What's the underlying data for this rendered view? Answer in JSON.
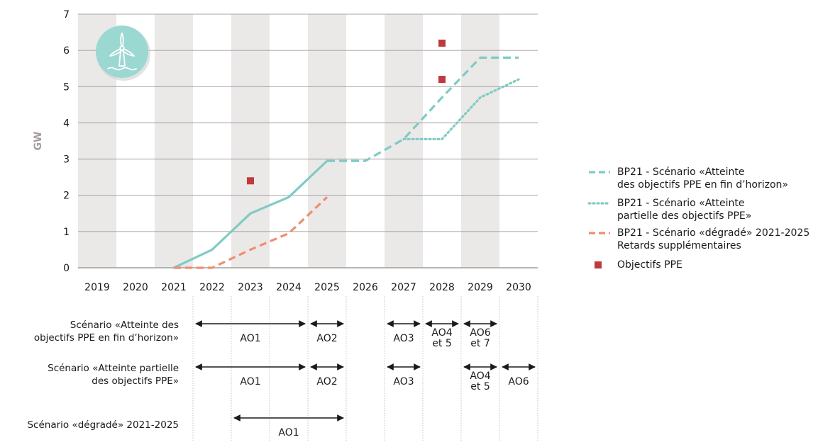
{
  "chart_data": {
    "type": "line",
    "ylabel": "GW",
    "ylim": [
      0,
      7
    ],
    "y_ticks": [
      "0",
      "1",
      "2",
      "3",
      "4",
      "5",
      "6",
      "7"
    ],
    "categories": [
      "2019",
      "2020",
      "2021",
      "2022",
      "2023",
      "2024",
      "2025",
      "2026",
      "2027",
      "2028",
      "2029",
      "2030"
    ],
    "grid": "horizontal",
    "alternating_column_shading": true,
    "legend_position": "right",
    "icon": "wind-turbine-icon",
    "series": [
      {
        "name": "BP21 - Scénario «Atteinte des objectifs PPE en fin d’horizon»",
        "legend_lines": [
          "BP21 - Scénario «Atteinte",
          "des objectifs PPE en fin d’horizon»"
        ],
        "style": "dashed",
        "color": "#7fcbc4",
        "points": [
          [
            2021,
            0
          ],
          [
            2022,
            0.5
          ],
          [
            2023,
            1.5
          ],
          [
            2024,
            1.95
          ],
          [
            2025,
            2.95
          ],
          [
            2026,
            2.95
          ],
          [
            2027,
            3.55
          ],
          [
            2028,
            4.7
          ],
          [
            2029,
            5.8
          ],
          [
            2030,
            5.8
          ]
        ]
      },
      {
        "name": "BP21 - Scénario «Atteinte partielle des objectifs PPE»",
        "legend_lines": [
          "BP21 - Scénario «Atteinte",
          "partielle des objectifs PPE»"
        ],
        "style": "dotted",
        "color": "#7fcbc4",
        "points": [
          [
            2027,
            3.55
          ],
          [
            2028,
            3.55
          ],
          [
            2029,
            4.7
          ],
          [
            2030,
            5.2
          ]
        ]
      },
      {
        "name": "BP21 - Scénario «dégradé» 2021-2025 Retards supplémentaires",
        "legend_lines": [
          "BP21 - Scénario «dégradé» 2021-2025",
          "Retards supplémentaires"
        ],
        "style": "dashed",
        "color": "#f08d70",
        "points": [
          [
            2021,
            0
          ],
          [
            2022,
            0
          ],
          [
            2023,
            0.5
          ],
          [
            2024,
            0.95
          ],
          [
            2025,
            1.95
          ]
        ]
      },
      {
        "name": "Objectifs PPE",
        "legend_lines": [
          "Objectifs PPE"
        ],
        "style": "markers",
        "color": "#c0393b",
        "points": [
          [
            2023,
            2.4
          ],
          [
            2028,
            5.2
          ],
          [
            2028,
            6.2
          ]
        ]
      }
    ],
    "series_shared_solid_segment": "2021–2025 common trajectory drawn as solid line",
    "timeline": {
      "rows": [
        {
          "label_lines": [
            "Scénario «Atteinte des",
            "objectifs PPE en fin d’horizon»"
          ],
          "arrows": [
            {
              "from": 2022,
              "to": 2024,
              "label_lines": [
                "AO1"
              ]
            },
            {
              "from": 2025,
              "to": 2025,
              "label_lines": [
                "AO2"
              ]
            },
            {
              "from": 2027,
              "to": 2027,
              "label_lines": [
                "AO3"
              ]
            },
            {
              "from": 2028,
              "to": 2028,
              "label_lines": [
                "AO4",
                "et 5"
              ]
            },
            {
              "from": 2029,
              "to": 2029,
              "label_lines": [
                "AO6",
                "et 7"
              ]
            }
          ]
        },
        {
          "label_lines": [
            "Scénario «Atteinte partielle",
            "des objectifs PPE»"
          ],
          "arrows": [
            {
              "from": 2022,
              "to": 2024,
              "label_lines": [
                "AO1"
              ]
            },
            {
              "from": 2025,
              "to": 2025,
              "label_lines": [
                "AO2"
              ]
            },
            {
              "from": 2027,
              "to": 2027,
              "label_lines": [
                "AO3"
              ]
            },
            {
              "from": 2029,
              "to": 2029,
              "label_lines": [
                "AO4",
                "et 5"
              ]
            },
            {
              "from": 2030,
              "to": 2030,
              "label_lines": [
                "AO6"
              ]
            }
          ]
        },
        {
          "label_lines": [
            "Scénario «dégradé» 2021-2025"
          ],
          "arrows": [
            {
              "from": 2023,
              "to": 2025,
              "label_lines": [
                "AO1"
              ]
            }
          ]
        }
      ]
    }
  }
}
